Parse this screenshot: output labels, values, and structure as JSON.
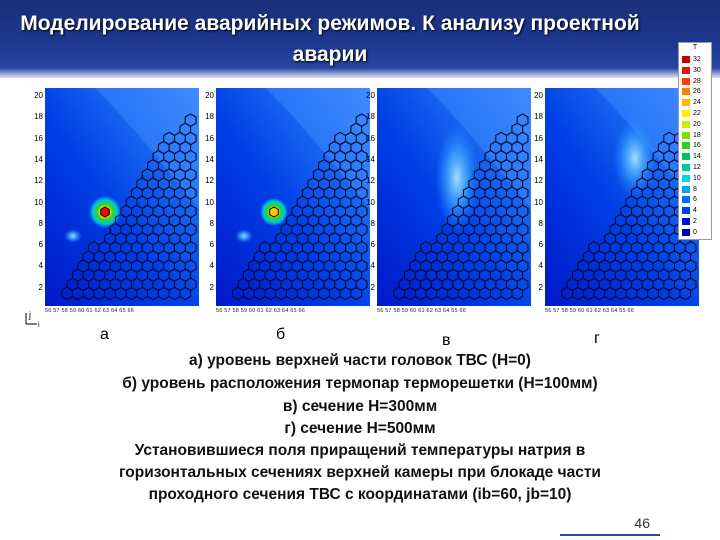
{
  "title": "Моделирование аварийных режимов. К анализу проектной аварии",
  "legend": {
    "title": "T",
    "items": [
      {
        "label": "32",
        "color": "#c80000"
      },
      {
        "label": "30",
        "color": "#e81010"
      },
      {
        "label": "28",
        "color": "#ff4000"
      },
      {
        "label": "26",
        "color": "#ff8000"
      },
      {
        "label": "24",
        "color": "#ffbb00"
      },
      {
        "label": "22",
        "color": "#ffee00"
      },
      {
        "label": "20",
        "color": "#c8f000"
      },
      {
        "label": "18",
        "color": "#80e000"
      },
      {
        "label": "16",
        "color": "#30d020"
      },
      {
        "label": "14",
        "color": "#00c060"
      },
      {
        "label": "12",
        "color": "#00c8a0"
      },
      {
        "label": "10",
        "color": "#00d8e0"
      },
      {
        "label": "8",
        "color": "#00a8f0"
      },
      {
        "label": "6",
        "color": "#0070ff"
      },
      {
        "label": "4",
        "color": "#0040e8"
      },
      {
        "label": "2",
        "color": "#0010d0"
      },
      {
        "label": "0",
        "color": "#0000b0"
      }
    ]
  },
  "y_ticks": [
    "20",
    "18",
    "16",
    "14",
    "12",
    "10",
    "8",
    "6",
    "4",
    "2"
  ],
  "x_tick_text": "56 57 58 59 60 61 62 63 64 65 66",
  "axis": {
    "j": "j",
    "i": "i"
  },
  "panels": [
    {
      "letter": "а",
      "hotspot": "strong",
      "x_ticks": "56 57 58 59 60 61 62 63 64 65 66"
    },
    {
      "letter": "б",
      "hotspot": "medium",
      "x_ticks": "56 57 58 59 60 61 62 63 64 65 66"
    },
    {
      "letter": "в",
      "hotspot": "plume",
      "x_ticks": "56 57 58 59 60 61 62 63 64 65 66"
    },
    {
      "letter": "г",
      "hotspot": "faint",
      "x_ticks": "56 57 58 59 60 61 62 63 64 65 66"
    }
  ],
  "captions": [
    "а) уровень верхней части головок ТВС (H=0)",
    "б) уровень расположения термопар терморешетки (H=100мм)",
    "в) сечение H=300мм",
    "г) сечение H=500мм",
    "Установившиеся поля приращений температуры натрия в",
    "горизонтальных сечениях верхней камеры при  блокаде части",
    "проходного сечения ТВС с координатами (ib=60, jb=10)"
  ],
  "page_number": "46"
}
